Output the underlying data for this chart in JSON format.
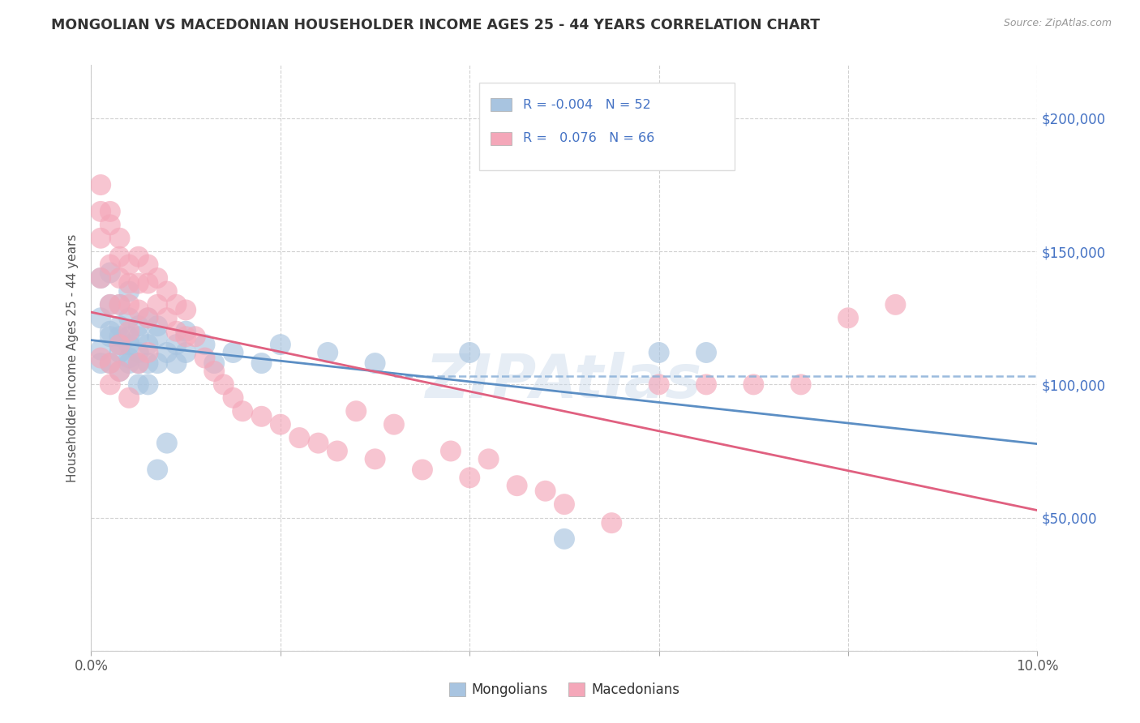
{
  "title": "MONGOLIAN VS MACEDONIAN HOUSEHOLDER INCOME AGES 25 - 44 YEARS CORRELATION CHART",
  "source": "Source: ZipAtlas.com",
  "ylabel": "Householder Income Ages 25 - 44 years",
  "xlim": [
    0.0,
    0.1
  ],
  "ylim": [
    0,
    220000
  ],
  "yticks": [
    0,
    50000,
    100000,
    150000,
    200000
  ],
  "ytick_labels": [
    "",
    "$50,000",
    "$100,000",
    "$150,000",
    "$200,000"
  ],
  "color_mongolian": "#a8c4e0",
  "color_macedonian": "#f4a7b9",
  "color_line_mongolian": "#5b8ec4",
  "color_line_macedonian": "#e06080",
  "color_dashed": "#8ab0d8",
  "color_ytick": "#4472c4",
  "background_color": "#ffffff",
  "mongolian_x": [
    0.001,
    0.001,
    0.001,
    0.002,
    0.002,
    0.002,
    0.002,
    0.003,
    0.003,
    0.003,
    0.003,
    0.003,
    0.004,
    0.004,
    0.004,
    0.004,
    0.004,
    0.005,
    0.005,
    0.005,
    0.005,
    0.006,
    0.006,
    0.006,
    0.007,
    0.007,
    0.007,
    0.008,
    0.008,
    0.009,
    0.009,
    0.01,
    0.01,
    0.012,
    0.013,
    0.015,
    0.018,
    0.02,
    0.025,
    0.03,
    0.04,
    0.05,
    0.06,
    0.065,
    0.001,
    0.002,
    0.003,
    0.004,
    0.005,
    0.006,
    0.007
  ],
  "mongolian_y": [
    113000,
    125000,
    108000,
    130000,
    118000,
    108000,
    120000,
    122000,
    112000,
    105000,
    118000,
    130000,
    135000,
    115000,
    108000,
    125000,
    110000,
    118000,
    108000,
    122000,
    112000,
    115000,
    108000,
    125000,
    118000,
    108000,
    122000,
    112000,
    78000,
    115000,
    108000,
    112000,
    120000,
    115000,
    108000,
    112000,
    108000,
    115000,
    112000,
    108000,
    112000,
    42000,
    112000,
    112000,
    140000,
    142000,
    115000,
    118000,
    100000,
    100000,
    68000
  ],
  "macedonian_x": [
    0.001,
    0.001,
    0.001,
    0.001,
    0.002,
    0.002,
    0.002,
    0.002,
    0.003,
    0.003,
    0.003,
    0.003,
    0.004,
    0.004,
    0.004,
    0.005,
    0.005,
    0.005,
    0.006,
    0.006,
    0.006,
    0.007,
    0.007,
    0.008,
    0.008,
    0.009,
    0.009,
    0.01,
    0.01,
    0.011,
    0.012,
    0.013,
    0.014,
    0.015,
    0.016,
    0.018,
    0.02,
    0.022,
    0.024,
    0.026,
    0.028,
    0.03,
    0.032,
    0.035,
    0.038,
    0.04,
    0.042,
    0.045,
    0.048,
    0.05,
    0.055,
    0.06,
    0.065,
    0.07,
    0.075,
    0.08,
    0.085,
    0.002,
    0.003,
    0.004,
    0.001,
    0.002,
    0.003,
    0.004,
    0.005,
    0.006
  ],
  "macedonian_y": [
    165000,
    155000,
    175000,
    140000,
    165000,
    160000,
    145000,
    130000,
    155000,
    148000,
    140000,
    130000,
    145000,
    138000,
    130000,
    148000,
    138000,
    128000,
    145000,
    138000,
    125000,
    140000,
    130000,
    135000,
    125000,
    130000,
    120000,
    128000,
    118000,
    118000,
    110000,
    105000,
    100000,
    95000,
    90000,
    88000,
    85000,
    80000,
    78000,
    75000,
    90000,
    72000,
    85000,
    68000,
    75000,
    65000,
    72000,
    62000,
    60000,
    55000,
    48000,
    100000,
    100000,
    100000,
    100000,
    125000,
    130000,
    108000,
    115000,
    120000,
    110000,
    100000,
    105000,
    95000,
    108000,
    112000
  ]
}
